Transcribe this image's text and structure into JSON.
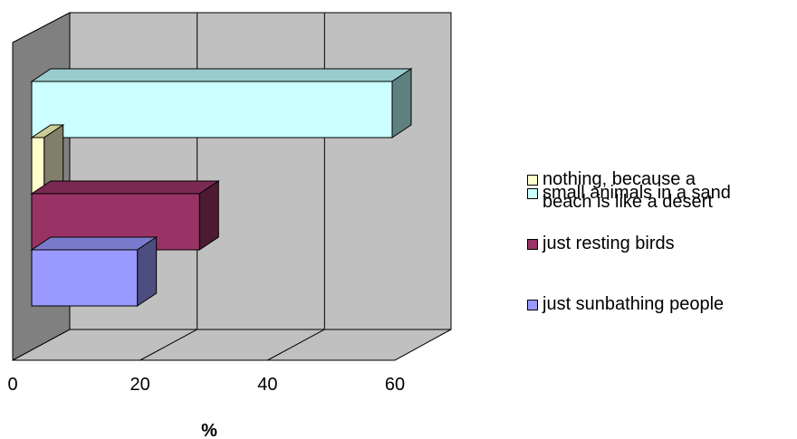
{
  "chart_data": {
    "type": "bar",
    "orientation": "horizontal",
    "three_d": true,
    "categories": [
      "small animals in a sand",
      "nothing, because a\nbeach is like a desert",
      "just resting birds",
      "just sunbathing people"
    ],
    "values": [
      58,
      2,
      27,
      17
    ],
    "colors": [
      "#ccffff",
      "#ffffcc",
      "#993366",
      "#9999ff"
    ],
    "side_colors": [
      "#5f8080",
      "#80806a",
      "#4d1a33",
      "#4d4d80"
    ],
    "top_colors": [
      "#99cccc",
      "#cccc99",
      "#7a2952",
      "#7a7acc"
    ],
    "xlabel": "%",
    "ylabel": "",
    "title": "",
    "xlim": [
      0,
      60
    ],
    "xticks": [
      0,
      20,
      40,
      60
    ],
    "grid": true,
    "legend_position": "right"
  }
}
